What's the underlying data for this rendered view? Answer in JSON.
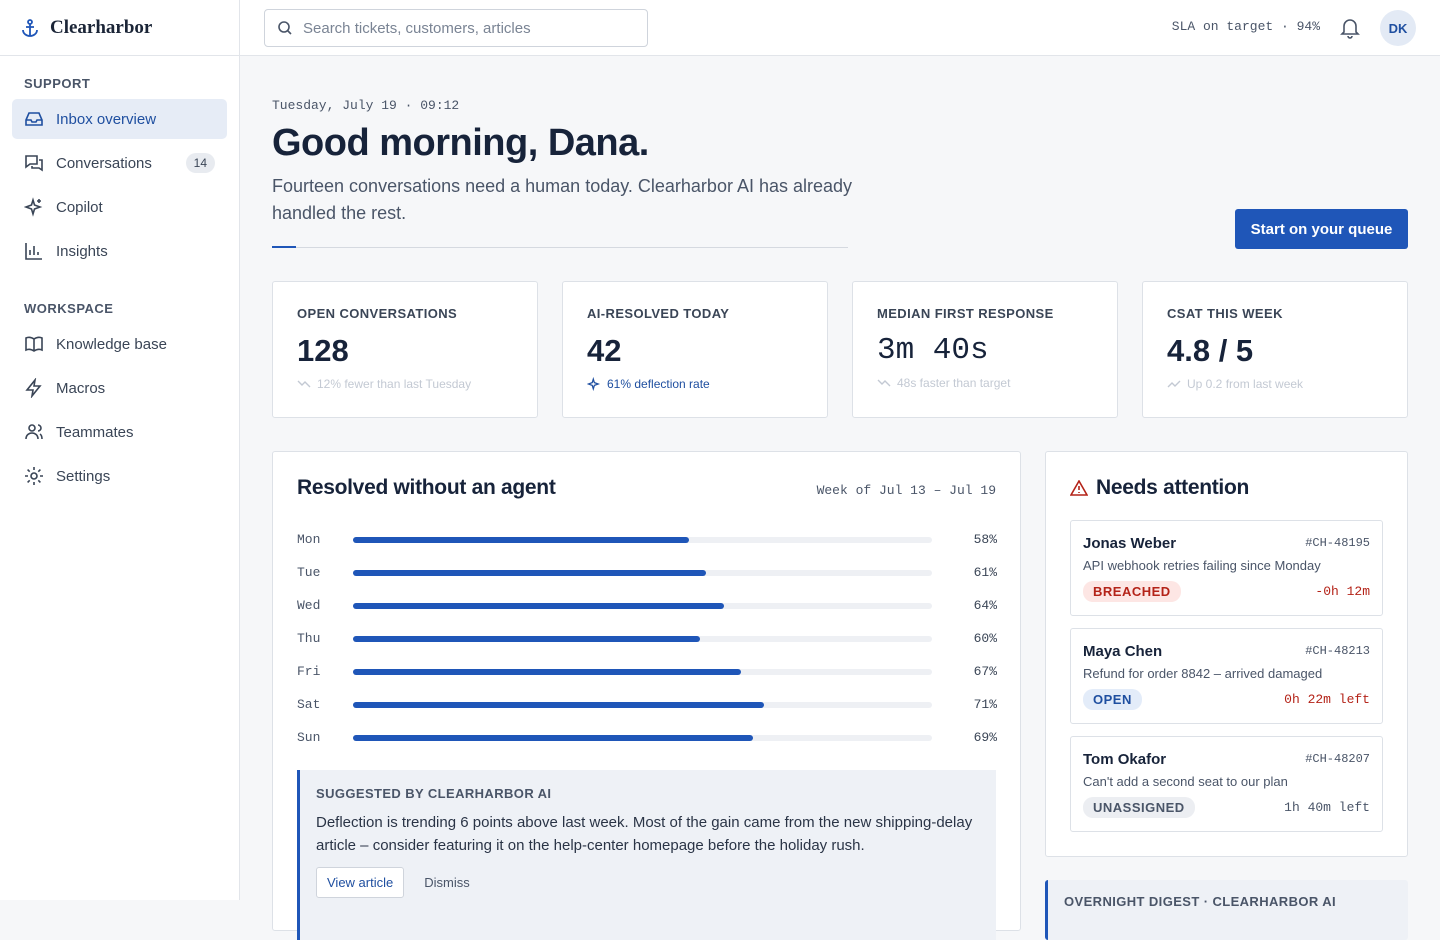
{
  "brand": "Clearharbor",
  "search_placeholder": "Search tickets, customers, articles",
  "sla": "SLA on target · 94%",
  "avatar": "DK",
  "nav": [
    {
      "section": "SUPPORT",
      "items": [
        {
          "label": "Inbox overview"
        },
        {
          "label": "Conversations",
          "badge": "14"
        },
        {
          "label": "Copilot"
        },
        {
          "label": "Insights"
        }
      ]
    },
    {
      "section": "WORKSPACE",
      "items": [
        {
          "label": "Knowledge base"
        },
        {
          "label": "Macros"
        },
        {
          "label": "Teammates"
        },
        {
          "label": "Settings"
        }
      ]
    }
  ],
  "header": {
    "date": "Tuesday, July 19 · 09:12",
    "greeting": "Good morning, Dana.",
    "lede": "Fourteen conversations need a human today. Clearharbor AI has already handled the rest.",
    "cta": "Start on your queue"
  },
  "kpis": [
    {
      "label": "OPEN CONVERSATIONS",
      "value": "128",
      "note": "12% fewer than last Tuesday"
    },
    {
      "label": "AI-RESOLVED TODAY",
      "value": "42",
      "note": "61% deflection rate"
    },
    {
      "label": "MEDIAN FIRST RESPONSE",
      "value": "3m 40s",
      "note": "48s faster than target"
    },
    {
      "label": "CSAT THIS WEEK",
      "value": "4.8 / 5",
      "note": "Up 0.2 from last week"
    }
  ],
  "chart_data": {
    "type": "bar",
    "title": "Resolved without an agent",
    "subtitle": "Week of Jul 13 – Jul 19",
    "categories": [
      "Mon",
      "Tue",
      "Wed",
      "Thu",
      "Fri",
      "Sat",
      "Sun"
    ],
    "values": [
      58,
      61,
      64,
      60,
      67,
      71,
      69
    ],
    "value_labels": [
      "58%",
      "61%",
      "64%",
      "60%",
      "67%",
      "71%",
      "69%"
    ],
    "xlim": [
      0,
      100
    ],
    "color": "#1f56b8"
  },
  "suggestion": {
    "label": "SUGGESTED BY CLEARHARBOR AI",
    "text": "Deflection is trending 6 points above last week. Most of the gain came from the new shipping-delay article – consider featuring it on the help-center homepage before the holiday rush.",
    "actions": [
      "View article",
      "Dismiss"
    ]
  },
  "attention": {
    "title": "Needs attention",
    "tickets": [
      {
        "name": "Jonas Weber",
        "id": "#CH-48195",
        "summary": "API webhook retries failing since Monday",
        "status": "BREACHED",
        "sla": "-0h 12m"
      },
      {
        "name": "Maya Chen",
        "id": "#CH-48213",
        "summary": "Refund for order 8842 – arrived damaged",
        "status": "OPEN",
        "sla": "0h 22m left"
      },
      {
        "name": "Tom Okafor",
        "id": "#CH-48207",
        "summary": "Can't add a second seat to our plan",
        "status": "UNASSIGNED",
        "sla": "1h 40m left"
      }
    ]
  },
  "digest": {
    "label": "OVERNIGHT DIGEST · CLEARHARBOR AI"
  }
}
